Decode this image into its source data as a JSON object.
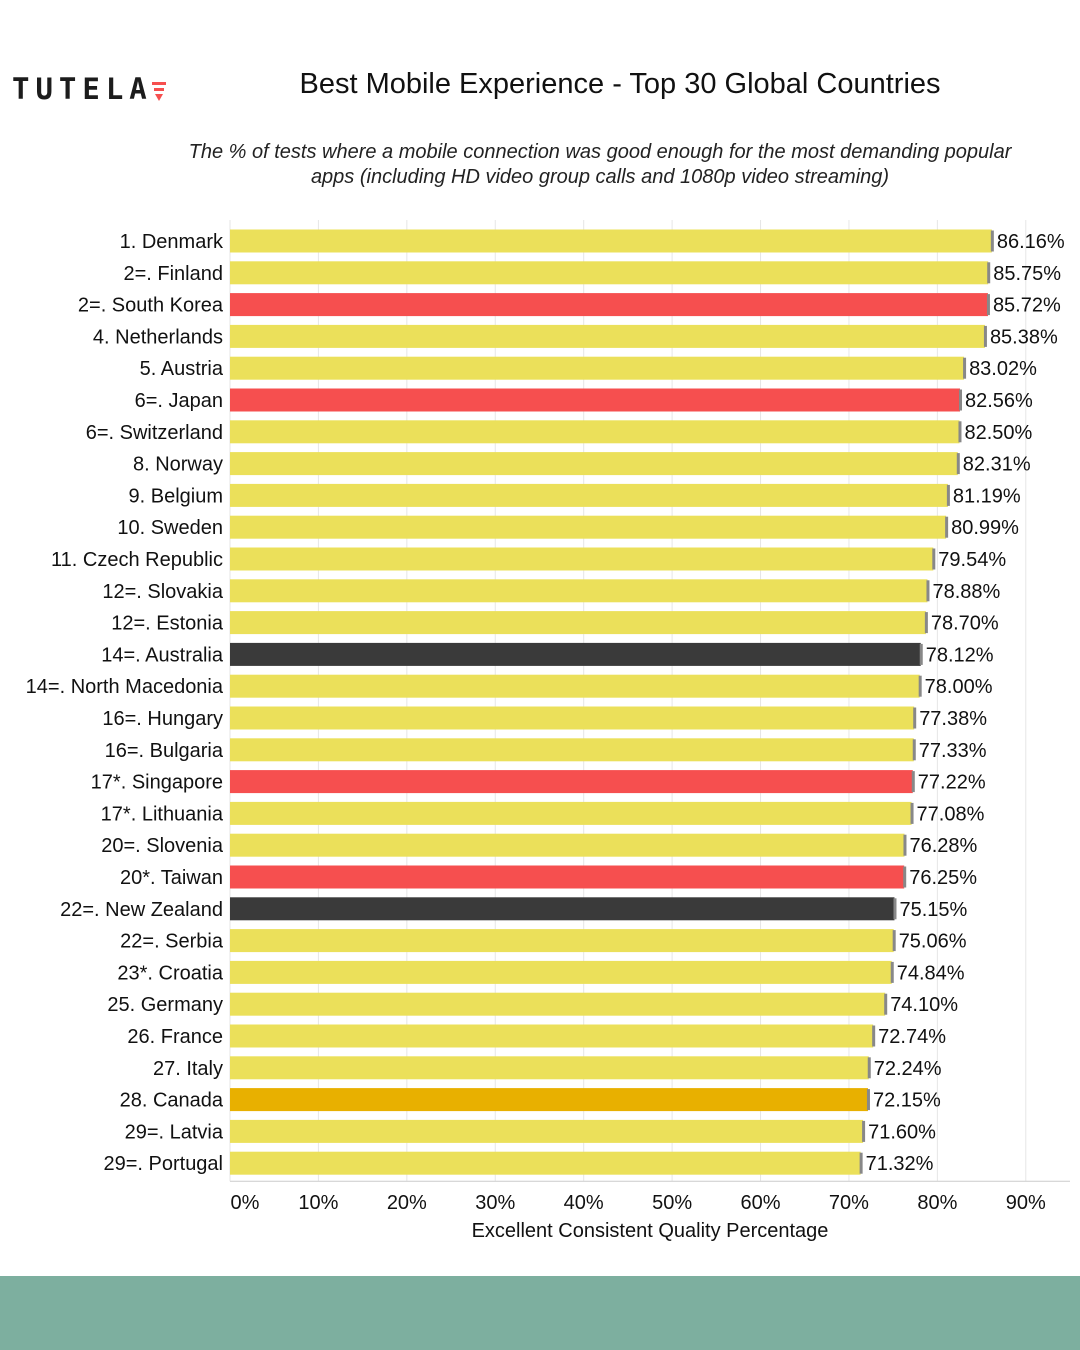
{
  "header": {
    "logo_text": "TUTELA",
    "title": "Best Mobile Experience - Top 30 Global Countries",
    "subtitle_line1": "The % of tests where a mobile connection was good enough for the most demanding popular",
    "subtitle_line2": "apps (including HD video group calls and 1080p video streaming)"
  },
  "colors": {
    "default_bar": "#ebe05a",
    "highlight_red": "#f64f4f",
    "highlight_dark": "#3a3a3a",
    "highlight_gold": "#e8b000",
    "error_bar": "#888888",
    "footer": "#7daf9f"
  },
  "chart_data": {
    "type": "bar",
    "orientation": "horizontal",
    "xlabel": "Excellent Consistent Quality Percentage",
    "xlim": [
      0,
      95
    ],
    "xticks": [
      0,
      10,
      20,
      30,
      40,
      50,
      60,
      70,
      80,
      90
    ],
    "xtick_labels": [
      "0%",
      "10%",
      "20%",
      "30%",
      "40%",
      "50%",
      "60%",
      "70%",
      "80%",
      "90%"
    ],
    "grid": true,
    "categories": [
      "1.  Denmark",
      "2=.  Finland",
      "2=.  South Korea",
      "4.  Netherlands",
      "5.  Austria",
      "6=.  Japan",
      "6=.  Switzerland",
      "8.  Norway",
      "9.  Belgium",
      "10.  Sweden",
      "11.  Czech Republic",
      "12=.  Slovakia",
      "12=.  Estonia",
      "14=.  Australia",
      "14=.  North Macedonia",
      "16=.  Hungary",
      "16=.  Bulgaria",
      "17*.  Singapore",
      "17*.  Lithuania",
      "20=.  Slovenia",
      "20*.  Taiwan",
      "22=.  New Zealand",
      "22=.  Serbia",
      "23*.  Croatia",
      "25.  Germany",
      "26.  France",
      "27.  Italy",
      "28.  Canada",
      "29=.  Latvia",
      "29=.  Portugal"
    ],
    "values": [
      86.16,
      85.75,
      85.72,
      85.38,
      83.02,
      82.56,
      82.5,
      82.31,
      81.19,
      80.99,
      79.54,
      78.88,
      78.7,
      78.12,
      78.0,
      77.38,
      77.33,
      77.22,
      77.08,
      76.28,
      76.25,
      75.15,
      75.06,
      74.84,
      74.1,
      72.74,
      72.24,
      72.15,
      71.6,
      71.32
    ],
    "value_labels": [
      "86.16%",
      "85.75%",
      "85.72%",
      "85.38%",
      "83.02%",
      "82.56%",
      "82.50%",
      "82.31%",
      "81.19%",
      "80.99%",
      "79.54%",
      "78.88%",
      "78.70%",
      "78.12%",
      "78.00%",
      "77.38%",
      "77.33%",
      "77.22%",
      "77.08%",
      "76.28%",
      "76.25%",
      "75.15%",
      "75.06%",
      "74.84%",
      "74.10%",
      "72.74%",
      "72.24%",
      "72.15%",
      "71.60%",
      "71.32%"
    ],
    "bar_colors": [
      "yellow",
      "yellow",
      "red",
      "yellow",
      "yellow",
      "red",
      "yellow",
      "yellow",
      "yellow",
      "yellow",
      "yellow",
      "yellow",
      "yellow",
      "dark",
      "yellow",
      "yellow",
      "yellow",
      "red",
      "yellow",
      "yellow",
      "red",
      "dark",
      "yellow",
      "yellow",
      "yellow",
      "yellow",
      "yellow",
      "gold",
      "yellow",
      "yellow"
    ]
  }
}
